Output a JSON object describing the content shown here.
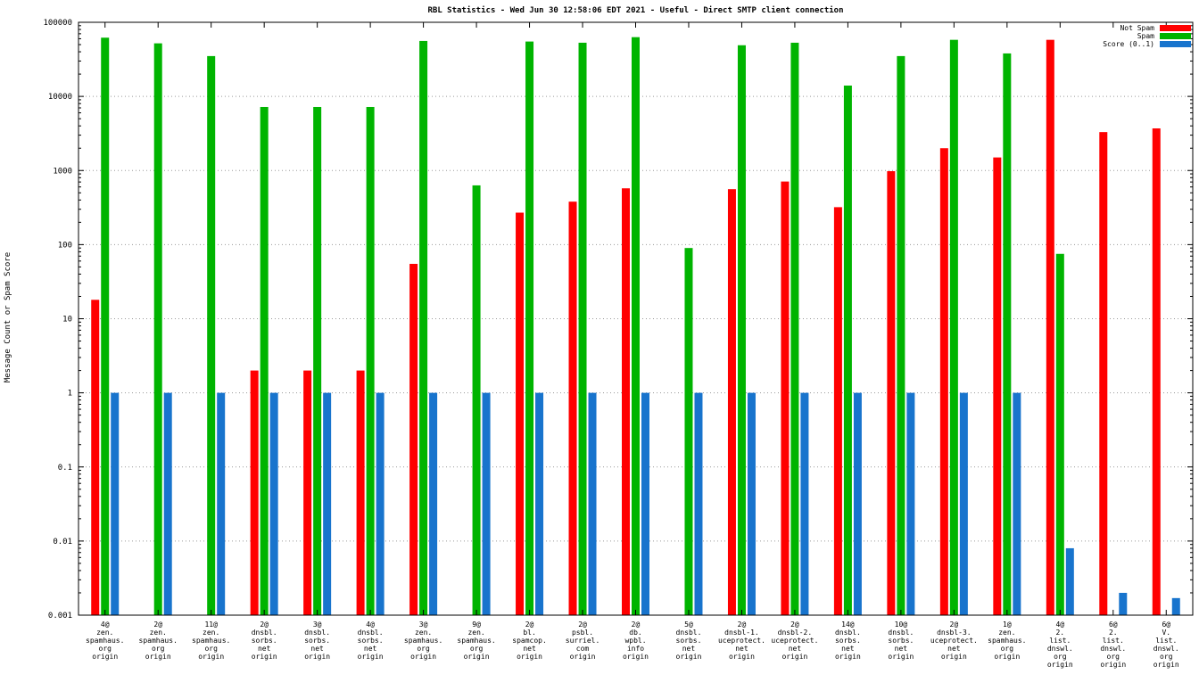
{
  "chart_data": {
    "type": "bar",
    "title": "RBL Statistics - Wed Jun 30 12:58:06 EDT 2021 - Useful - Direct SMTP client connection",
    "ylabel": "Message Count or Spam Score",
    "xlabel": "",
    "y_scale": "log10",
    "ylim": [
      0.001,
      100000
    ],
    "y_tick_labels": [
      "100000",
      "10000",
      "1000",
      "100",
      "10",
      "1",
      "0.1",
      "0.01",
      "0.001"
    ],
    "grid": "horizontal dotted lines at each decade",
    "legend_position": "top-right",
    "background_color": "#ffffff",
    "categories": [
      [
        "4@",
        "zen.",
        "spamhaus.",
        "org",
        "origin"
      ],
      [
        "2@",
        "zen.",
        "spamhaus.",
        "org",
        "origin"
      ],
      [
        "11@",
        "zen.",
        "spamhaus.",
        "org",
        "origin"
      ],
      [
        "2@",
        "dnsbl.",
        "sorbs.",
        "net",
        "origin"
      ],
      [
        "3@",
        "dnsbl.",
        "sorbs.",
        "net",
        "origin"
      ],
      [
        "4@",
        "dnsbl.",
        "sorbs.",
        "net",
        "origin"
      ],
      [
        "3@",
        "zen.",
        "spamhaus.",
        "org",
        "origin"
      ],
      [
        "9@",
        "zen.",
        "spamhaus.",
        "org",
        "origin"
      ],
      [
        "2@",
        "bl.",
        "spamcop.",
        "net",
        "origin"
      ],
      [
        "2@",
        "psbl.",
        "surriel.",
        "com",
        "origin"
      ],
      [
        "2@",
        "db.",
        "wpbl.",
        "info",
        "origin"
      ],
      [
        "5@",
        "dnsbl.",
        "sorbs.",
        "net",
        "origin"
      ],
      [
        "2@",
        "dnsbl-1.",
        "uceprotect.",
        "net",
        "origin"
      ],
      [
        "2@",
        "dnsbl-2.",
        "uceprotect.",
        "net",
        "origin"
      ],
      [
        "14@",
        "dnsbl.",
        "sorbs.",
        "net",
        "origin"
      ],
      [
        "10@",
        "dnsbl.",
        "sorbs.",
        "net",
        "origin"
      ],
      [
        "2@",
        "dnsbl-3.",
        "uceprotect.",
        "net",
        "origin"
      ],
      [
        "1@",
        "zen.",
        "spamhaus.",
        "org",
        "origin"
      ],
      [
        "4@",
        "2.",
        "list.",
        "dnswl.",
        "org",
        "origin"
      ],
      [
        "6@",
        "2.",
        "list.",
        "dnswl.",
        "org",
        "origin"
      ],
      [
        "6@",
        "V.",
        "list.",
        "dnswl.",
        "org",
        "origin"
      ]
    ],
    "series": [
      {
        "name": "Not Spam",
        "color": "#ff0000",
        "values": [
          18,
          null,
          null,
          2,
          2,
          2,
          55,
          null,
          270,
          380,
          575,
          null,
          560,
          710,
          320,
          980,
          2000,
          1500,
          58000,
          3300,
          3700
        ]
      },
      {
        "name": "Spam",
        "color": "#00b400",
        "values": [
          62000,
          52000,
          35000,
          7200,
          7200,
          7200,
          56000,
          630,
          55000,
          53000,
          63000,
          90,
          49000,
          53000,
          14000,
          35000,
          58000,
          38000,
          75,
          null,
          null
        ]
      },
      {
        "name": "Score (0..1)",
        "color": "#1874cd",
        "values": [
          1,
          1,
          1,
          1,
          1,
          1,
          1,
          1,
          1,
          1,
          1,
          1,
          1,
          1,
          1,
          1,
          1,
          1,
          0.008,
          0.002,
          0.0017
        ]
      }
    ]
  }
}
